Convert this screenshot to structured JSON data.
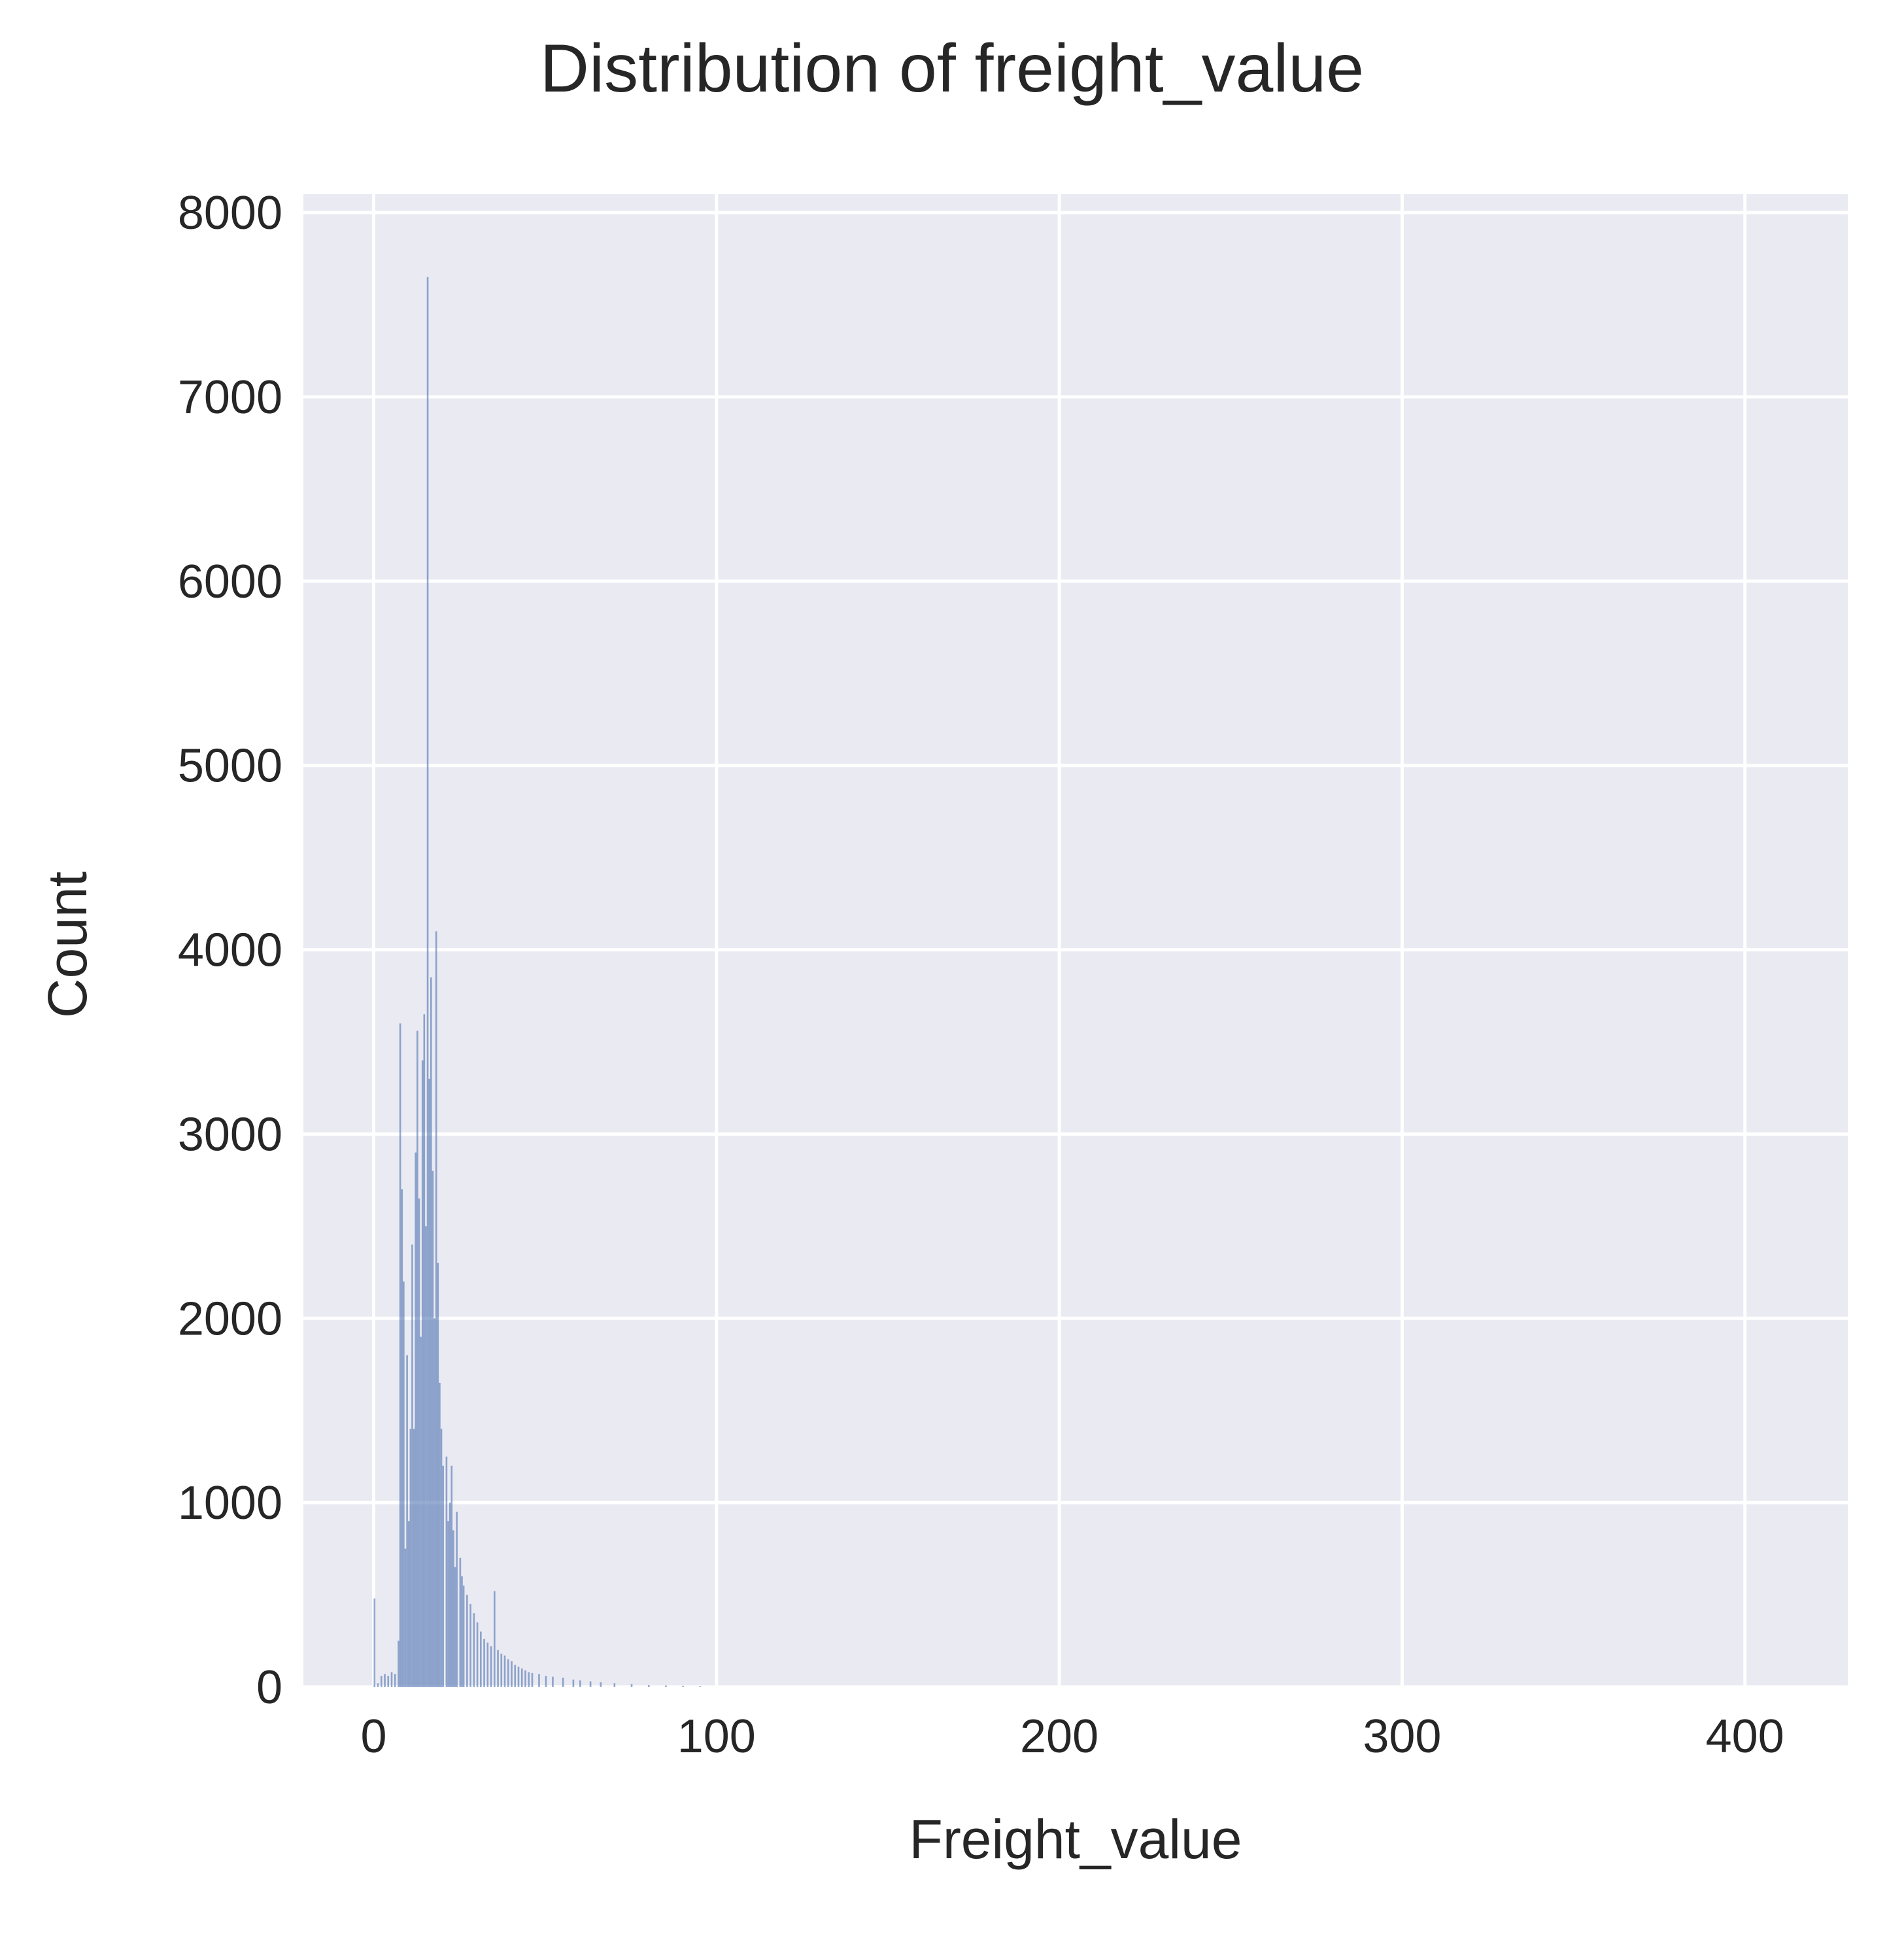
{
  "chart_data": {
    "type": "bar",
    "subtype": "histogram",
    "title": "Distribution of freight_value",
    "xlabel": "Freight_value",
    "ylabel": "Count",
    "xlim": [
      -20.5,
      430
    ],
    "ylim": [
      0,
      8100
    ],
    "xticks": [
      0,
      100,
      200,
      300,
      400
    ],
    "yticks": [
      0,
      1000,
      2000,
      3000,
      4000,
      5000,
      6000,
      7000,
      8000
    ],
    "grid": true,
    "legend": "none",
    "colors": {
      "background": "#eaeaf2",
      "grid": "#ffffff",
      "bar": "#4c72b0",
      "text": "#262626"
    },
    "bin_width": 0.5,
    "bins": [
      [
        0,
        480
      ],
      [
        1,
        20
      ],
      [
        2,
        60
      ],
      [
        3,
        70
      ],
      [
        4,
        60
      ],
      [
        5,
        80
      ],
      [
        6,
        70
      ],
      [
        7,
        250
      ],
      [
        7.5,
        3600
      ],
      [
        8,
        2700
      ],
      [
        8.5,
        2200
      ],
      [
        9,
        750
      ],
      [
        9.5,
        1800
      ],
      [
        10,
        900
      ],
      [
        10.5,
        1400
      ],
      [
        11,
        2400
      ],
      [
        11.5,
        1400
      ],
      [
        12,
        2900
      ],
      [
        12.5,
        3560
      ],
      [
        13,
        2650
      ],
      [
        13.5,
        1900
      ],
      [
        14,
        3400
      ],
      [
        14.5,
        3650
      ],
      [
        15,
        2500
      ],
      [
        15.5,
        7650
      ],
      [
        16,
        3300
      ],
      [
        16.5,
        3850
      ],
      [
        17,
        2800
      ],
      [
        17.5,
        2000
      ],
      [
        18,
        4100
      ],
      [
        18.5,
        2300
      ],
      [
        19,
        1650
      ],
      [
        19.5,
        1400
      ],
      [
        20,
        1200
      ],
      [
        21,
        1250
      ],
      [
        21.5,
        900
      ],
      [
        22,
        1000
      ],
      [
        22.5,
        1200
      ],
      [
        23,
        850
      ],
      [
        23.5,
        650
      ],
      [
        24,
        950
      ],
      [
        25,
        700
      ],
      [
        25.5,
        600
      ],
      [
        26,
        550
      ],
      [
        27,
        500
      ],
      [
        28,
        450
      ],
      [
        29,
        400
      ],
      [
        30,
        350
      ],
      [
        31,
        300
      ],
      [
        32,
        260
      ],
      [
        33,
        240
      ],
      [
        34,
        220
      ],
      [
        35,
        520
      ],
      [
        36,
        200
      ],
      [
        37,
        180
      ],
      [
        38,
        170
      ],
      [
        39,
        150
      ],
      [
        40,
        140
      ],
      [
        41,
        120
      ],
      [
        42,
        110
      ],
      [
        43,
        100
      ],
      [
        44,
        90
      ],
      [
        45,
        80
      ],
      [
        46,
        75
      ],
      [
        48,
        70
      ],
      [
        50,
        60
      ],
      [
        52,
        55
      ],
      [
        55,
        50
      ],
      [
        58,
        40
      ],
      [
        60,
        35
      ],
      [
        63,
        30
      ],
      [
        66,
        25
      ],
      [
        70,
        20
      ],
      [
        75,
        15
      ],
      [
        80,
        10
      ],
      [
        85,
        8
      ],
      [
        90,
        5
      ],
      [
        95,
        3
      ]
    ]
  }
}
